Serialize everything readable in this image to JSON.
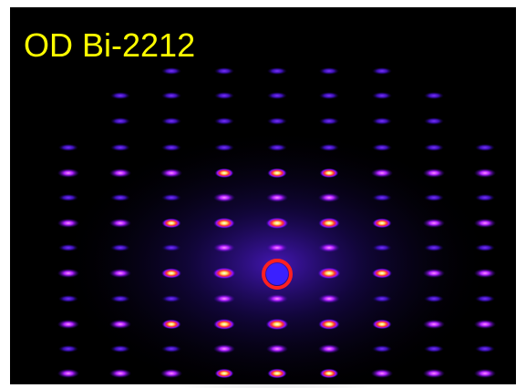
{
  "image": {
    "caption": "OD Bi-2212"
  }
}
